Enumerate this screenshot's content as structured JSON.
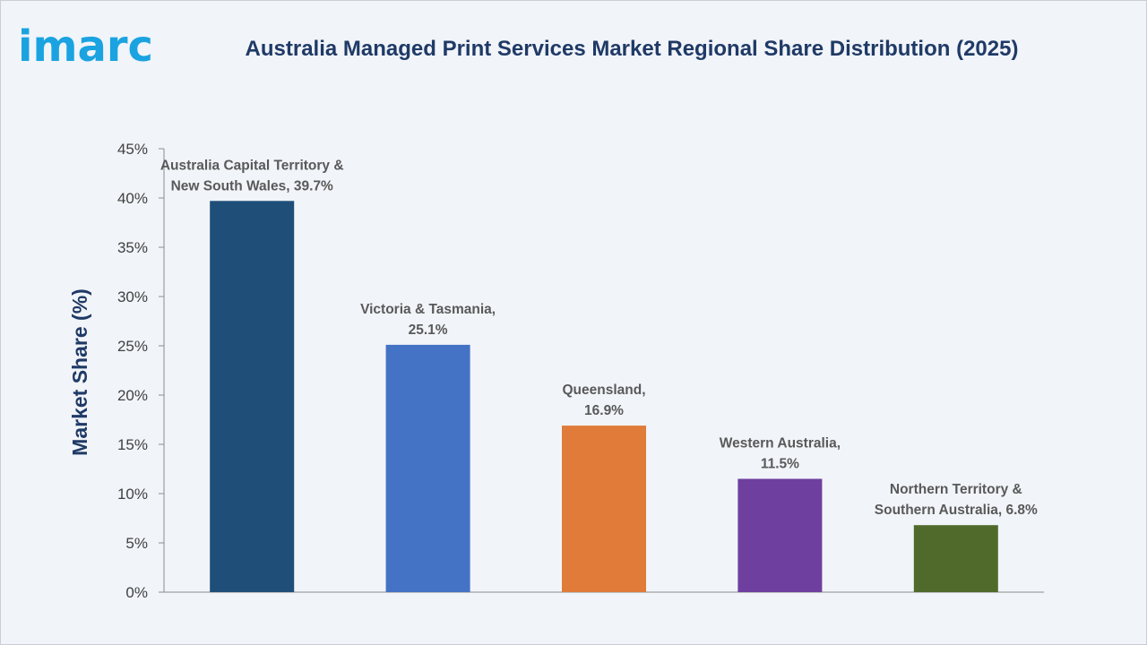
{
  "logo": {
    "text": "imarc"
  },
  "title": "Australia Managed Print Services Market Regional Share Distribution (2025)",
  "chart_data": {
    "type": "bar",
    "ylabel": "Market Share (%)",
    "ylim": [
      0,
      45
    ],
    "yticks": [
      0,
      5,
      10,
      15,
      20,
      25,
      30,
      35,
      40,
      45
    ],
    "ytick_labels": [
      "0%",
      "5%",
      "10%",
      "15%",
      "20%",
      "25%",
      "30%",
      "35%",
      "40%",
      "45%"
    ],
    "grid": false,
    "categories": [
      "Australia Capital Territory & New South Wales",
      "Victoria & Tasmania",
      "Queensland",
      "Western Australia",
      "Northern Territory & Southern Australia"
    ],
    "values": [
      39.7,
      25.1,
      16.9,
      11.5,
      6.8
    ],
    "colors": [
      "#1f4e79",
      "#4472c4",
      "#e07b39",
      "#6f3fa0",
      "#4f6a2a"
    ],
    "data_labels": [
      [
        "Australia Capital Territory &",
        "New South Wales, 39.7%"
      ],
      [
        "Victoria & Tasmania,",
        "25.1%"
      ],
      [
        "Queensland,",
        "16.9%"
      ],
      [
        "Western Australia,",
        "11.5%"
      ],
      [
        "Northern Territory &",
        "Southern Australia, 6.8%"
      ]
    ]
  }
}
